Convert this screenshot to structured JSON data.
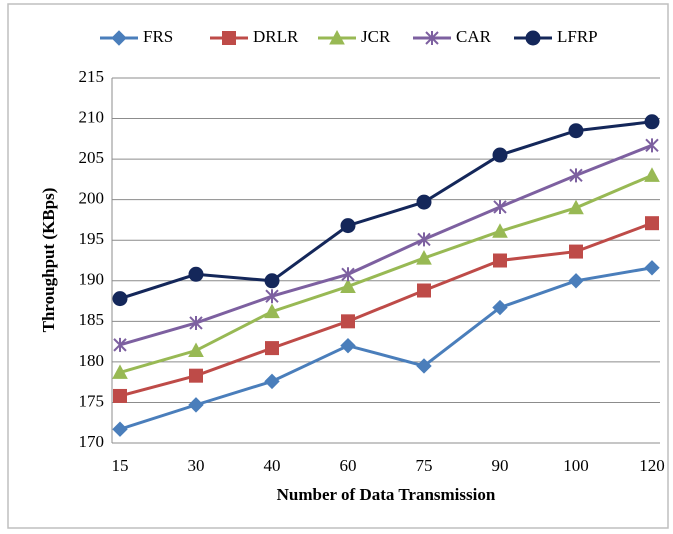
{
  "chart_data": {
    "type": "line",
    "x_label": "Number of Data Transmission",
    "y_label": "Throughput  (KBps)",
    "categories": [
      "15",
      "30",
      "40",
      "60",
      "75",
      "90",
      "100",
      "120"
    ],
    "series": [
      {
        "name": "FRS",
        "color": "#4a7ebb",
        "marker": "diamond",
        "values": [
          171.7,
          174.7,
          177.6,
          182,
          179.5,
          186.7,
          190,
          191.6
        ]
      },
      {
        "name": "DRLR",
        "color": "#be4b48",
        "marker": "square",
        "values": [
          175.8,
          178.3,
          181.7,
          185,
          188.8,
          192.5,
          193.6,
          197.1
        ]
      },
      {
        "name": "JCR",
        "color": "#98b954",
        "marker": "triangle",
        "values": [
          178.7,
          181.4,
          186.2,
          189.3,
          192.8,
          196.1,
          199,
          203
        ]
      },
      {
        "name": "CAR",
        "color": "#7d60a0",
        "marker": "star",
        "values": [
          182.1,
          184.8,
          188.1,
          190.8,
          195.1,
          199.1,
          203,
          206.7
        ]
      },
      {
        "name": "LFRP",
        "color": "#14275a",
        "marker": "circle",
        "values": [
          187.8,
          190.8,
          190,
          196.8,
          199.7,
          205.5,
          208.5,
          209.6
        ]
      }
    ],
    "ylim": [
      170,
      215
    ],
    "yticks": [
      170,
      175,
      180,
      185,
      190,
      195,
      200,
      205,
      210,
      215
    ],
    "grid": true,
    "legend": "top"
  }
}
